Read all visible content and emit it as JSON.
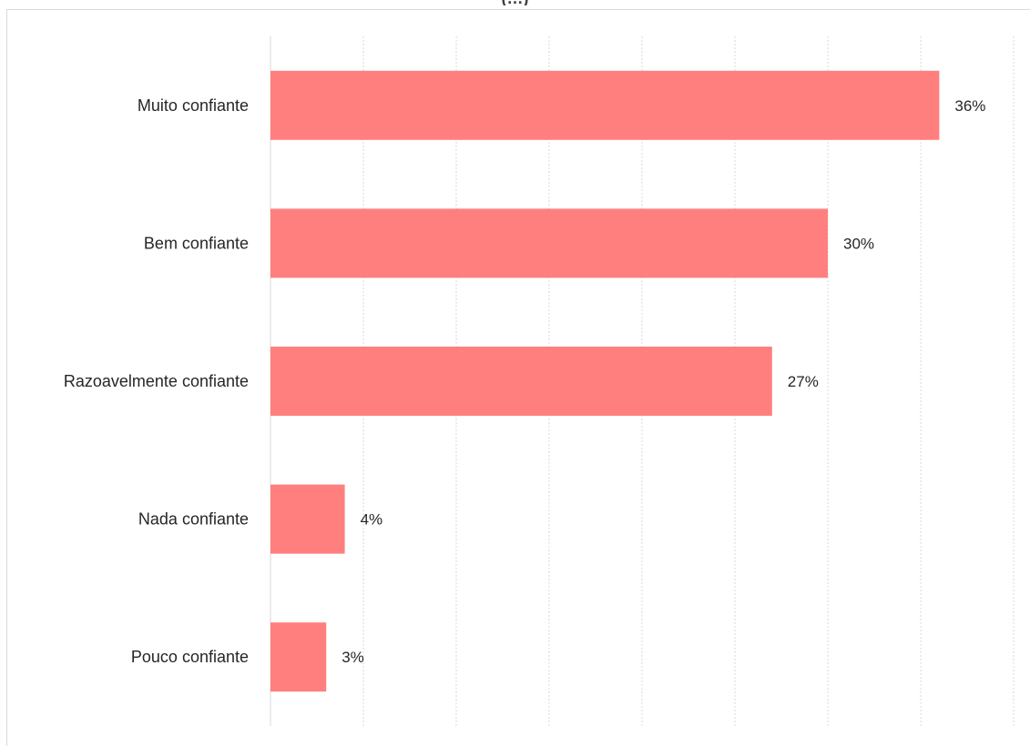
{
  "chart_data": {
    "type": "bar",
    "orientation": "horizontal",
    "title": "(…)",
    "categories": [
      "Muito confiante",
      "Bem confiante",
      "Razoavelmente confiante",
      "Nada confiante",
      "Pouco confiante"
    ],
    "values": [
      36,
      30,
      27,
      4,
      3
    ],
    "value_labels": [
      "36%",
      "30%",
      "27%",
      "4%",
      "3%"
    ],
    "unit": "%",
    "xlim": [
      0,
      40
    ],
    "grid": true,
    "bar_color": "#ff7f7f",
    "grid_color": "#d9d9d9"
  }
}
